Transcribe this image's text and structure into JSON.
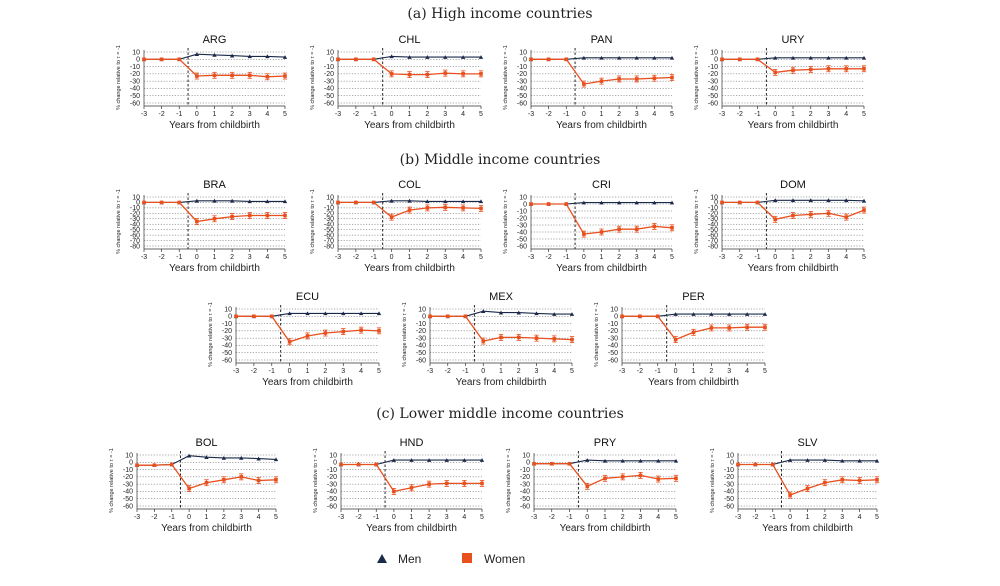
{
  "sections": [
    {
      "label": "(a)  High income countries"
    },
    {
      "label": "(b)  Middle income countries"
    },
    {
      "label": "(c)  Lower middle income countries"
    }
  ],
  "legend": [
    {
      "label": "Men",
      "color": "#1b2a4a",
      "marker": "triangle"
    },
    {
      "label": "Women",
      "color": "#e8501e",
      "marker": "square"
    }
  ],
  "chart_data": [
    {
      "type": "line",
      "title": "ARG",
      "section": "(a)  High income countries",
      "xlabel": "Years from childbirth",
      "ylabel": "% change relative to τ = -1",
      "x": [
        -3,
        -2,
        -1,
        0,
        1,
        2,
        3,
        4,
        5
      ],
      "ylim": [
        -60,
        10
      ],
      "yticks": [
        10,
        0,
        -10,
        -20,
        -30,
        -40,
        -50,
        -60
      ],
      "event_line_x": -0.5,
      "series": [
        {
          "name": "Men",
          "values": [
            0,
            0,
            0,
            7,
            6,
            5,
            4,
            4,
            3
          ]
        },
        {
          "name": "Women",
          "values": [
            0,
            0,
            0,
            -23,
            -22,
            -22,
            -22,
            -24,
            -23
          ]
        }
      ]
    },
    {
      "type": "line",
      "title": "CHL",
      "section": "(a)  High income countries",
      "xlabel": "Years from childbirth",
      "ylabel": "% change relative to τ = -1",
      "x": [
        -3,
        -2,
        -1,
        0,
        1,
        2,
        3,
        4,
        5
      ],
      "ylim": [
        -60,
        10
      ],
      "yticks": [
        10,
        0,
        -10,
        -20,
        -30,
        -40,
        -50,
        -60
      ],
      "event_line_x": -0.5,
      "series": [
        {
          "name": "Men",
          "values": [
            0,
            0,
            0,
            4,
            3,
            3,
            3,
            3,
            3
          ]
        },
        {
          "name": "Women",
          "values": [
            0,
            0,
            0,
            -20,
            -21,
            -21,
            -19,
            -20,
            -20
          ]
        }
      ]
    },
    {
      "type": "line",
      "title": "PAN",
      "section": "(a)  High income countries",
      "xlabel": "Years from childbirth",
      "ylabel": "% change relative to τ = -1",
      "x": [
        -3,
        -2,
        -1,
        0,
        1,
        2,
        3,
        4,
        5
      ],
      "ylim": [
        -60,
        10
      ],
      "yticks": [
        10,
        0,
        -10,
        -20,
        -30,
        -40,
        -50,
        -60
      ],
      "event_line_x": -0.5,
      "series": [
        {
          "name": "Men",
          "values": [
            0,
            0,
            0,
            2,
            2,
            2,
            2,
            2,
            2
          ]
        },
        {
          "name": "Women",
          "values": [
            0,
            0,
            0,
            -34,
            -30,
            -27,
            -27,
            -26,
            -25
          ]
        }
      ]
    },
    {
      "type": "line",
      "title": "URY",
      "section": "(a)  High income countries",
      "xlabel": "Years from childbirth",
      "ylabel": "% change relative to τ = -1",
      "x": [
        -3,
        -2,
        -1,
        0,
        1,
        2,
        3,
        4,
        5
      ],
      "ylim": [
        -60,
        10
      ],
      "yticks": [
        10,
        0,
        -10,
        -20,
        -30,
        -40,
        -50,
        -60
      ],
      "event_line_x": -0.5,
      "series": [
        {
          "name": "Men",
          "values": [
            0,
            0,
            0,
            2,
            2,
            2,
            2,
            2,
            2
          ]
        },
        {
          "name": "Women",
          "values": [
            0,
            0,
            0,
            -18,
            -15,
            -14,
            -13,
            -13,
            -13
          ]
        }
      ]
    },
    {
      "type": "line",
      "title": "BRA",
      "section": "(b)  Middle income countries",
      "xlabel": "Years from childbirth",
      "ylabel": "% change relative to τ = -1",
      "x": [
        -3,
        -2,
        -1,
        0,
        1,
        2,
        3,
        4,
        5
      ],
      "ylim": [
        -80,
        10
      ],
      "yticks": [
        10,
        0,
        -10,
        -20,
        -30,
        -40,
        -50,
        -60,
        -70,
        -80
      ],
      "event_line_x": -0.5,
      "series": [
        {
          "name": "Men",
          "values": [
            0,
            0,
            0,
            3,
            3,
            3,
            2,
            2,
            2
          ]
        },
        {
          "name": "Women",
          "values": [
            0,
            0,
            0,
            -35,
            -30,
            -26,
            -24,
            -24,
            -24
          ]
        }
      ]
    },
    {
      "type": "line",
      "title": "COL",
      "section": "(b)  Middle income countries",
      "xlabel": "Years from childbirth",
      "ylabel": "% change relative to τ = -1",
      "x": [
        -3,
        -2,
        -1,
        0,
        1,
        2,
        3,
        4,
        5
      ],
      "ylim": [
        -80,
        10
      ],
      "yticks": [
        10,
        0,
        -10,
        -20,
        -30,
        -40,
        -50,
        -60,
        -70,
        -80
      ],
      "event_line_x": -0.5,
      "series": [
        {
          "name": "Men",
          "values": [
            0,
            0,
            0,
            3,
            3,
            2,
            2,
            2,
            2
          ]
        },
        {
          "name": "Women",
          "values": [
            0,
            0,
            0,
            -27,
            -14,
            -10,
            -9,
            -10,
            -11
          ]
        }
      ]
    },
    {
      "type": "line",
      "title": "CRI",
      "section": "(b)  Middle income countries",
      "xlabel": "Years from childbirth",
      "ylabel": "% change relative to τ = -1",
      "x": [
        -3,
        -2,
        -1,
        0,
        1,
        2,
        3,
        4,
        5
      ],
      "ylim": [
        -60,
        10
      ],
      "yticks": [
        10,
        0,
        -10,
        -20,
        -30,
        -40,
        -50,
        -60
      ],
      "event_line_x": -0.5,
      "series": [
        {
          "name": "Men",
          "values": [
            0,
            0,
            0,
            2,
            2,
            2,
            2,
            2,
            2
          ]
        },
        {
          "name": "Women",
          "values": [
            0,
            0,
            0,
            -43,
            -40,
            -36,
            -36,
            -32,
            -34
          ]
        }
      ]
    },
    {
      "type": "line",
      "title": "DOM",
      "section": "(b)  Middle income countries",
      "xlabel": "Years from childbirth",
      "ylabel": "% change relative to τ = -1",
      "x": [
        -3,
        -2,
        -1,
        0,
        1,
        2,
        3,
        4,
        5
      ],
      "ylim": [
        -80,
        10
      ],
      "yticks": [
        10,
        0,
        -10,
        -20,
        -30,
        -40,
        -50,
        -60,
        -70,
        -80
      ],
      "event_line_x": -0.5,
      "series": [
        {
          "name": "Men",
          "values": [
            0,
            0,
            0,
            4,
            4,
            4,
            4,
            4,
            3
          ]
        },
        {
          "name": "Women",
          "values": [
            0,
            0,
            0,
            -31,
            -24,
            -22,
            -20,
            -27,
            -14
          ]
        }
      ]
    },
    {
      "type": "line",
      "title": "ECU",
      "section": "(b)  Middle income countries",
      "xlabel": "Years from childbirth",
      "ylabel": "% change relative to τ = -1",
      "x": [
        -3,
        -2,
        -1,
        0,
        1,
        2,
        3,
        4,
        5
      ],
      "ylim": [
        -60,
        10
      ],
      "yticks": [
        10,
        0,
        -10,
        -20,
        -30,
        -40,
        -50,
        -60
      ],
      "event_line_x": -0.5,
      "series": [
        {
          "name": "Men",
          "values": [
            0,
            0,
            0,
            4,
            4,
            4,
            4,
            4,
            4
          ]
        },
        {
          "name": "Women",
          "values": [
            0,
            0,
            0,
            -35,
            -27,
            -23,
            -21,
            -19,
            -20
          ]
        }
      ]
    },
    {
      "type": "line",
      "title": "MEX",
      "section": "(b)  Middle income countries",
      "xlabel": "Years from childbirth",
      "ylabel": "% change relative to τ = -1",
      "x": [
        -3,
        -2,
        -1,
        0,
        1,
        2,
        3,
        4,
        5
      ],
      "ylim": [
        -60,
        10
      ],
      "yticks": [
        10,
        0,
        -10,
        -20,
        -30,
        -40,
        -50,
        -60
      ],
      "event_line_x": -0.5,
      "series": [
        {
          "name": "Men",
          "values": [
            0,
            0,
            0,
            7,
            5,
            5,
            4,
            3,
            3
          ]
        },
        {
          "name": "Women",
          "values": [
            0,
            0,
            0,
            -34,
            -29,
            -29,
            -30,
            -31,
            -32
          ]
        }
      ]
    },
    {
      "type": "line",
      "title": "PER",
      "section": "(b)  Middle income countries",
      "xlabel": "Years from childbirth",
      "ylabel": "% change relative to τ = -1",
      "x": [
        -3,
        -2,
        -1,
        0,
        1,
        2,
        3,
        4,
        5
      ],
      "ylim": [
        -60,
        10
      ],
      "yticks": [
        10,
        0,
        -10,
        -20,
        -30,
        -40,
        -50,
        -60
      ],
      "event_line_x": -0.5,
      "series": [
        {
          "name": "Men",
          "values": [
            0,
            0,
            0,
            3,
            3,
            3,
            3,
            3,
            3
          ]
        },
        {
          "name": "Women",
          "values": [
            0,
            0,
            0,
            -32,
            -22,
            -16,
            -16,
            -15,
            -15
          ]
        }
      ]
    },
    {
      "type": "line",
      "title": "BOL",
      "section": "(c)  Lower middle income countries",
      "xlabel": "Years from childbirth",
      "ylabel": "% change relative to τ = -1",
      "x": [
        -3,
        -2,
        -1,
        0,
        1,
        2,
        3,
        4,
        5
      ],
      "ylim": [
        -60,
        10
      ],
      "yticks": [
        10,
        0,
        -10,
        -20,
        -30,
        -40,
        -50,
        -60
      ],
      "event_line_x": -0.5,
      "series": [
        {
          "name": "Men",
          "values": [
            -4,
            -4,
            -3,
            9,
            7,
            6,
            6,
            5,
            4
          ]
        },
        {
          "name": "Women",
          "values": [
            -4,
            -4,
            -3,
            -36,
            -28,
            -24,
            -20,
            -25,
            -24
          ]
        }
      ]
    },
    {
      "type": "line",
      "title": "HND",
      "section": "(c)  Lower middle income countries",
      "xlabel": "Years from childbirth",
      "ylabel": "% change relative to τ = -1",
      "x": [
        -3,
        -2,
        -1,
        0,
        1,
        2,
        3,
        4,
        5
      ],
      "ylim": [
        -60,
        10
      ],
      "yticks": [
        10,
        0,
        -10,
        -20,
        -30,
        -40,
        -50,
        -60
      ],
      "event_line_x": -0.5,
      "series": [
        {
          "name": "Men",
          "values": [
            -3,
            -3,
            -3,
            3,
            3,
            3,
            3,
            3,
            3
          ]
        },
        {
          "name": "Women",
          "values": [
            -3,
            -3,
            -3,
            -40,
            -35,
            -30,
            -29,
            -29,
            -29
          ]
        }
      ]
    },
    {
      "type": "line",
      "title": "PRY",
      "section": "(c)  Lower middle income countries",
      "xlabel": "Years from childbirth",
      "ylabel": "% change relative to τ = -1",
      "x": [
        -3,
        -2,
        -1,
        0,
        1,
        2,
        3,
        4,
        5
      ],
      "ylim": [
        -60,
        10
      ],
      "yticks": [
        10,
        0,
        -10,
        -20,
        -30,
        -40,
        -50,
        -60
      ],
      "event_line_x": -0.5,
      "series": [
        {
          "name": "Men",
          "values": [
            -2,
            -2,
            -2,
            3,
            2,
            2,
            2,
            2,
            2
          ]
        },
        {
          "name": "Women",
          "values": [
            -2,
            -2,
            -2,
            -33,
            -22,
            -20,
            -18,
            -23,
            -22
          ]
        }
      ]
    },
    {
      "type": "line",
      "title": "SLV",
      "section": "(c)  Lower middle income countries",
      "xlabel": "Years from childbirth",
      "ylabel": "% change relative to τ = -1",
      "x": [
        -3,
        -2,
        -1,
        0,
        1,
        2,
        3,
        4,
        5
      ],
      "ylim": [
        -60,
        10
      ],
      "yticks": [
        10,
        0,
        -10,
        -20,
        -30,
        -40,
        -50,
        -60
      ],
      "event_line_x": -0.5,
      "series": [
        {
          "name": "Men",
          "values": [
            -3,
            -3,
            -3,
            3,
            3,
            3,
            2,
            2,
            2
          ]
        },
        {
          "name": "Women",
          "values": [
            -3,
            -3,
            -3,
            -45,
            -36,
            -28,
            -24,
            -25,
            -24
          ]
        }
      ]
    }
  ]
}
